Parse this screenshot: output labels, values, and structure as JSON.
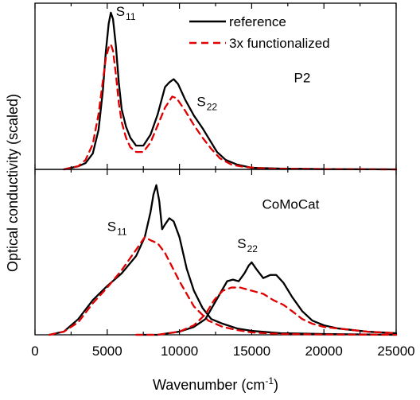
{
  "chart_data": {
    "type": "line",
    "xlabel": {
      "main": "Wavenumber (cm",
      "sup": "-1",
      "close": ")"
    },
    "ylabel": "Optical conductivity (scaled)",
    "xlim": [
      0,
      25000
    ],
    "x_ticks": [
      0,
      5000,
      10000,
      15000,
      20000,
      25000
    ],
    "x_tick_labels": [
      "0",
      "5000",
      "10000",
      "15000",
      "20000",
      "25000"
    ],
    "legend": {
      "placement": "top-right",
      "entries": [
        {
          "label": "reference",
          "color": "#000000",
          "dash": "solid"
        },
        {
          "label": "3x functionalized",
          "color": "#e00000",
          "dash": "dashed"
        }
      ]
    },
    "panels": [
      {
        "name": "P2",
        "label": "P2",
        "ylim": [
          0,
          1.05
        ],
        "annotations": [
          {
            "base": "S",
            "sub": "11",
            "x": 5600,
            "y": 0.97
          },
          {
            "base": "S",
            "sub": "22",
            "x": 11200,
            "y": 0.4
          }
        ],
        "series": [
          {
            "name": "reference",
            "color": "#000000",
            "dash": "solid",
            "points": [
              [
                2000,
                0.0
              ],
              [
                3000,
                0.02
              ],
              [
                3500,
                0.04
              ],
              [
                4000,
                0.1
              ],
              [
                4400,
                0.25
              ],
              [
                4700,
                0.5
              ],
              [
                4900,
                0.74
              ],
              [
                5100,
                0.92
              ],
              [
                5250,
                0.99
              ],
              [
                5400,
                0.95
              ],
              [
                5600,
                0.78
              ],
              [
                5800,
                0.55
              ],
              [
                6000,
                0.38
              ],
              [
                6300,
                0.27
              ],
              [
                6600,
                0.2
              ],
              [
                7000,
                0.15
              ],
              [
                7500,
                0.15
              ],
              [
                8000,
                0.22
              ],
              [
                8500,
                0.35
              ],
              [
                9000,
                0.52
              ],
              [
                9300,
                0.55
              ],
              [
                9600,
                0.57
              ],
              [
                9900,
                0.54
              ],
              [
                10400,
                0.44
              ],
              [
                11000,
                0.34
              ],
              [
                11600,
                0.26
              ],
              [
                12000,
                0.2
              ],
              [
                12600,
                0.11
              ],
              [
                13200,
                0.06
              ],
              [
                14000,
                0.03
              ],
              [
                15000,
                0.01
              ],
              [
                17000,
                0.005
              ],
              [
                20000,
                0.002
              ],
              [
                25000,
                0.0
              ]
            ]
          },
          {
            "name": "3x functionalized",
            "color": "#e00000",
            "dash": "dashed",
            "points": [
              [
                2000,
                0.0
              ],
              [
                3000,
                0.02
              ],
              [
                3500,
                0.06
              ],
              [
                4000,
                0.16
              ],
              [
                4400,
                0.35
              ],
              [
                4700,
                0.56
              ],
              [
                4900,
                0.7
              ],
              [
                5100,
                0.77
              ],
              [
                5250,
                0.79
              ],
              [
                5400,
                0.75
              ],
              [
                5600,
                0.6
              ],
              [
                5800,
                0.42
              ],
              [
                6000,
                0.3
              ],
              [
                6300,
                0.2
              ],
              [
                6600,
                0.14
              ],
              [
                7000,
                0.11
              ],
              [
                7500,
                0.11
              ],
              [
                8000,
                0.17
              ],
              [
                8500,
                0.28
              ],
              [
                9000,
                0.39
              ],
              [
                9500,
                0.46
              ],
              [
                9800,
                0.45
              ],
              [
                10400,
                0.37
              ],
              [
                11000,
                0.28
              ],
              [
                11600,
                0.2
              ],
              [
                12200,
                0.13
              ],
              [
                12800,
                0.07
              ],
              [
                13600,
                0.03
              ],
              [
                14500,
                0.015
              ],
              [
                16000,
                0.005
              ],
              [
                20000,
                0.002
              ],
              [
                25000,
                0.0
              ]
            ]
          }
        ]
      },
      {
        "name": "CoMoCat",
        "label": "CoMoCat",
        "ylim": [
          0,
          1.05
        ],
        "annotations": [
          {
            "base": "S",
            "sub": "11",
            "x": 5000,
            "y": 0.66
          },
          {
            "base": "S",
            "sub": "22",
            "x": 14000,
            "y": 0.55
          }
        ],
        "series": [
          {
            "name": "reference",
            "color": "#000000",
            "dash": "solid",
            "points": [
              [
                1000,
                0.0
              ],
              [
                2000,
                0.02
              ],
              [
                3000,
                0.1
              ],
              [
                4000,
                0.22
              ],
              [
                5000,
                0.31
              ],
              [
                6000,
                0.39
              ],
              [
                7000,
                0.5
              ],
              [
                7600,
                0.62
              ],
              [
                8000,
                0.78
              ],
              [
                8200,
                0.89
              ],
              [
                8400,
                0.95
              ],
              [
                8600,
                0.85
              ],
              [
                8800,
                0.67
              ],
              [
                9000,
                0.7
              ],
              [
                9300,
                0.74
              ],
              [
                9600,
                0.72
              ],
              [
                10000,
                0.62
              ],
              [
                10500,
                0.42
              ],
              [
                11000,
                0.28
              ],
              [
                11600,
                0.17
              ],
              [
                12200,
                0.1
              ],
              [
                13000,
                0.07
              ],
              [
                14000,
                0.04
              ],
              [
                15000,
                0.025
              ],
              [
                17000,
                0.01
              ],
              [
                20000,
                0.005
              ],
              [
                25000,
                0.0
              ]
            ]
          },
          {
            "name": "3x functionalized",
            "color": "#e00000",
            "dash": "dashed",
            "points": [
              [
                1000,
                0.0
              ],
              [
                2000,
                0.02
              ],
              [
                3000,
                0.08
              ],
              [
                4000,
                0.2
              ],
              [
                5000,
                0.3
              ],
              [
                6000,
                0.41
              ],
              [
                7000,
                0.54
              ],
              [
                7600,
                0.62
              ],
              [
                8000,
                0.6
              ],
              [
                8500,
                0.58
              ],
              [
                9000,
                0.52
              ],
              [
                10000,
                0.34
              ],
              [
                11000,
                0.18
              ],
              [
                12000,
                0.09
              ],
              [
                13000,
                0.05
              ],
              [
                14000,
                0.03
              ],
              [
                15000,
                0.015
              ],
              [
                17000,
                0.005
              ],
              [
                20000,
                0.002
              ],
              [
                25000,
                0.0
              ]
            ]
          },
          {
            "name": "reference",
            "color": "#000000",
            "dash": "solid",
            "points": [
              [
                7000,
                0.0
              ],
              [
                8500,
                0.0
              ],
              [
                10000,
                0.02
              ],
              [
                11000,
                0.05
              ],
              [
                11800,
                0.1
              ],
              [
                12300,
                0.18
              ],
              [
                12800,
                0.26
              ],
              [
                13300,
                0.34
              ],
              [
                13700,
                0.35
              ],
              [
                14100,
                0.34
              ],
              [
                14500,
                0.39
              ],
              [
                14800,
                0.44
              ],
              [
                15000,
                0.46
              ],
              [
                15300,
                0.42
              ],
              [
                15800,
                0.36
              ],
              [
                16300,
                0.38
              ],
              [
                16700,
                0.38
              ],
              [
                17200,
                0.33
              ],
              [
                17800,
                0.24
              ],
              [
                18500,
                0.15
              ],
              [
                19200,
                0.09
              ],
              [
                20000,
                0.06
              ],
              [
                21000,
                0.04
              ],
              [
                22000,
                0.03
              ],
              [
                23000,
                0.02
              ],
              [
                25000,
                0.01
              ]
            ]
          },
          {
            "name": "3x functionalized",
            "color": "#e00000",
            "dash": "dashed",
            "points": [
              [
                7000,
                0.0
              ],
              [
                8500,
                0.0
              ],
              [
                10000,
                0.02
              ],
              [
                11000,
                0.06
              ],
              [
                11800,
                0.13
              ],
              [
                12400,
                0.22
              ],
              [
                13000,
                0.28
              ],
              [
                13600,
                0.3
              ],
              [
                14200,
                0.3
              ],
              [
                15000,
                0.28
              ],
              [
                15800,
                0.26
              ],
              [
                16500,
                0.22
              ],
              [
                17200,
                0.19
              ],
              [
                17800,
                0.15
              ],
              [
                18500,
                0.1
              ],
              [
                19200,
                0.07
              ],
              [
                20000,
                0.05
              ],
              [
                21000,
                0.04
              ],
              [
                22000,
                0.03
              ],
              [
                23000,
                0.02
              ],
              [
                25000,
                0.01
              ]
            ]
          }
        ]
      }
    ]
  }
}
